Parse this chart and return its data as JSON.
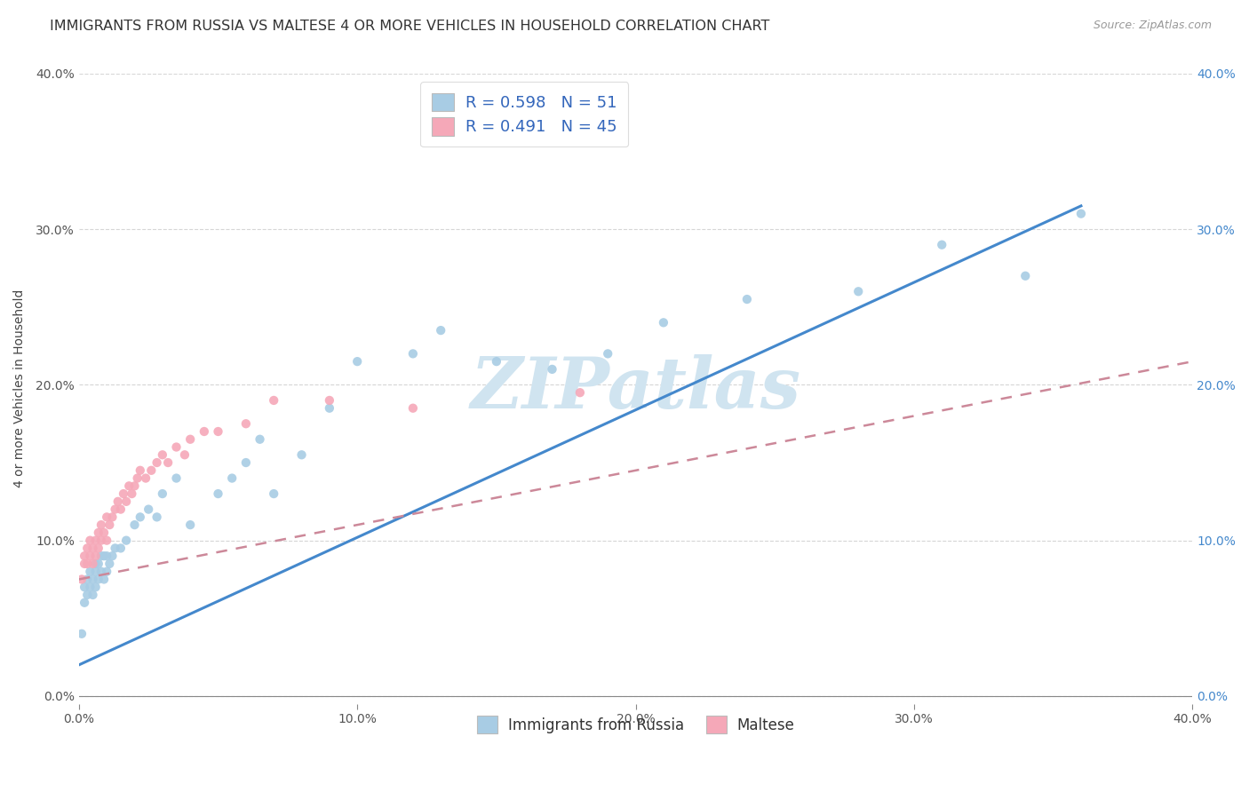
{
  "title": "IMMIGRANTS FROM RUSSIA VS MALTESE 4 OR MORE VEHICLES IN HOUSEHOLD CORRELATION CHART",
  "source": "Source: ZipAtlas.com",
  "ylabel": "4 or more Vehicles in Household",
  "xlim": [
    0.0,
    0.4
  ],
  "ylim": [
    -0.005,
    0.4
  ],
  "xtick_vals": [
    0.0,
    0.1,
    0.2,
    0.3,
    0.4
  ],
  "ytick_vals": [
    0.0,
    0.1,
    0.2,
    0.3,
    0.4
  ],
  "russia_R": 0.598,
  "russia_N": 51,
  "maltese_R": 0.491,
  "maltese_N": 45,
  "russia_color": "#a8cce4",
  "maltese_color": "#f5a8b8",
  "russia_line_color": "#4488cc",
  "maltese_line_color": "#cc8899",
  "right_tick_color": "#4488cc",
  "watermark": "ZIPatlas",
  "watermark_color": "#d0e4f0",
  "background_color": "#ffffff",
  "title_fontsize": 11.5,
  "axis_label_fontsize": 10,
  "tick_fontsize": 10,
  "russia_scatter_x": [
    0.001,
    0.002,
    0.002,
    0.003,
    0.003,
    0.004,
    0.004,
    0.005,
    0.005,
    0.006,
    0.006,
    0.006,
    0.007,
    0.007,
    0.008,
    0.008,
    0.009,
    0.009,
    0.01,
    0.01,
    0.011,
    0.012,
    0.013,
    0.015,
    0.017,
    0.02,
    0.022,
    0.025,
    0.028,
    0.03,
    0.035,
    0.04,
    0.05,
    0.055,
    0.06,
    0.065,
    0.07,
    0.08,
    0.09,
    0.1,
    0.12,
    0.13,
    0.15,
    0.17,
    0.19,
    0.21,
    0.24,
    0.28,
    0.31,
    0.34,
    0.36
  ],
  "russia_scatter_y": [
    0.04,
    0.06,
    0.07,
    0.065,
    0.075,
    0.07,
    0.08,
    0.065,
    0.075,
    0.07,
    0.08,
    0.085,
    0.075,
    0.085,
    0.08,
    0.09,
    0.075,
    0.09,
    0.08,
    0.09,
    0.085,
    0.09,
    0.095,
    0.095,
    0.1,
    0.11,
    0.115,
    0.12,
    0.115,
    0.13,
    0.14,
    0.11,
    0.13,
    0.14,
    0.15,
    0.165,
    0.13,
    0.155,
    0.185,
    0.215,
    0.22,
    0.235,
    0.215,
    0.21,
    0.22,
    0.24,
    0.255,
    0.26,
    0.29,
    0.27,
    0.31
  ],
  "maltese_scatter_x": [
    0.001,
    0.002,
    0.002,
    0.003,
    0.003,
    0.004,
    0.004,
    0.005,
    0.005,
    0.006,
    0.006,
    0.007,
    0.007,
    0.008,
    0.008,
    0.009,
    0.01,
    0.01,
    0.011,
    0.012,
    0.013,
    0.014,
    0.015,
    0.016,
    0.017,
    0.018,
    0.019,
    0.02,
    0.021,
    0.022,
    0.024,
    0.026,
    0.028,
    0.03,
    0.032,
    0.035,
    0.038,
    0.04,
    0.045,
    0.05,
    0.06,
    0.07,
    0.09,
    0.12,
    0.18
  ],
  "maltese_scatter_y": [
    0.075,
    0.085,
    0.09,
    0.085,
    0.095,
    0.09,
    0.1,
    0.085,
    0.095,
    0.09,
    0.1,
    0.095,
    0.105,
    0.1,
    0.11,
    0.105,
    0.1,
    0.115,
    0.11,
    0.115,
    0.12,
    0.125,
    0.12,
    0.13,
    0.125,
    0.135,
    0.13,
    0.135,
    0.14,
    0.145,
    0.14,
    0.145,
    0.15,
    0.155,
    0.15,
    0.16,
    0.155,
    0.165,
    0.17,
    0.17,
    0.175,
    0.19,
    0.19,
    0.185,
    0.195
  ],
  "russia_line_x": [
    0.0,
    0.36
  ],
  "russia_line_y": [
    0.02,
    0.315
  ],
  "maltese_line_x": [
    0.0,
    0.4
  ],
  "maltese_line_y": [
    0.075,
    0.215
  ]
}
